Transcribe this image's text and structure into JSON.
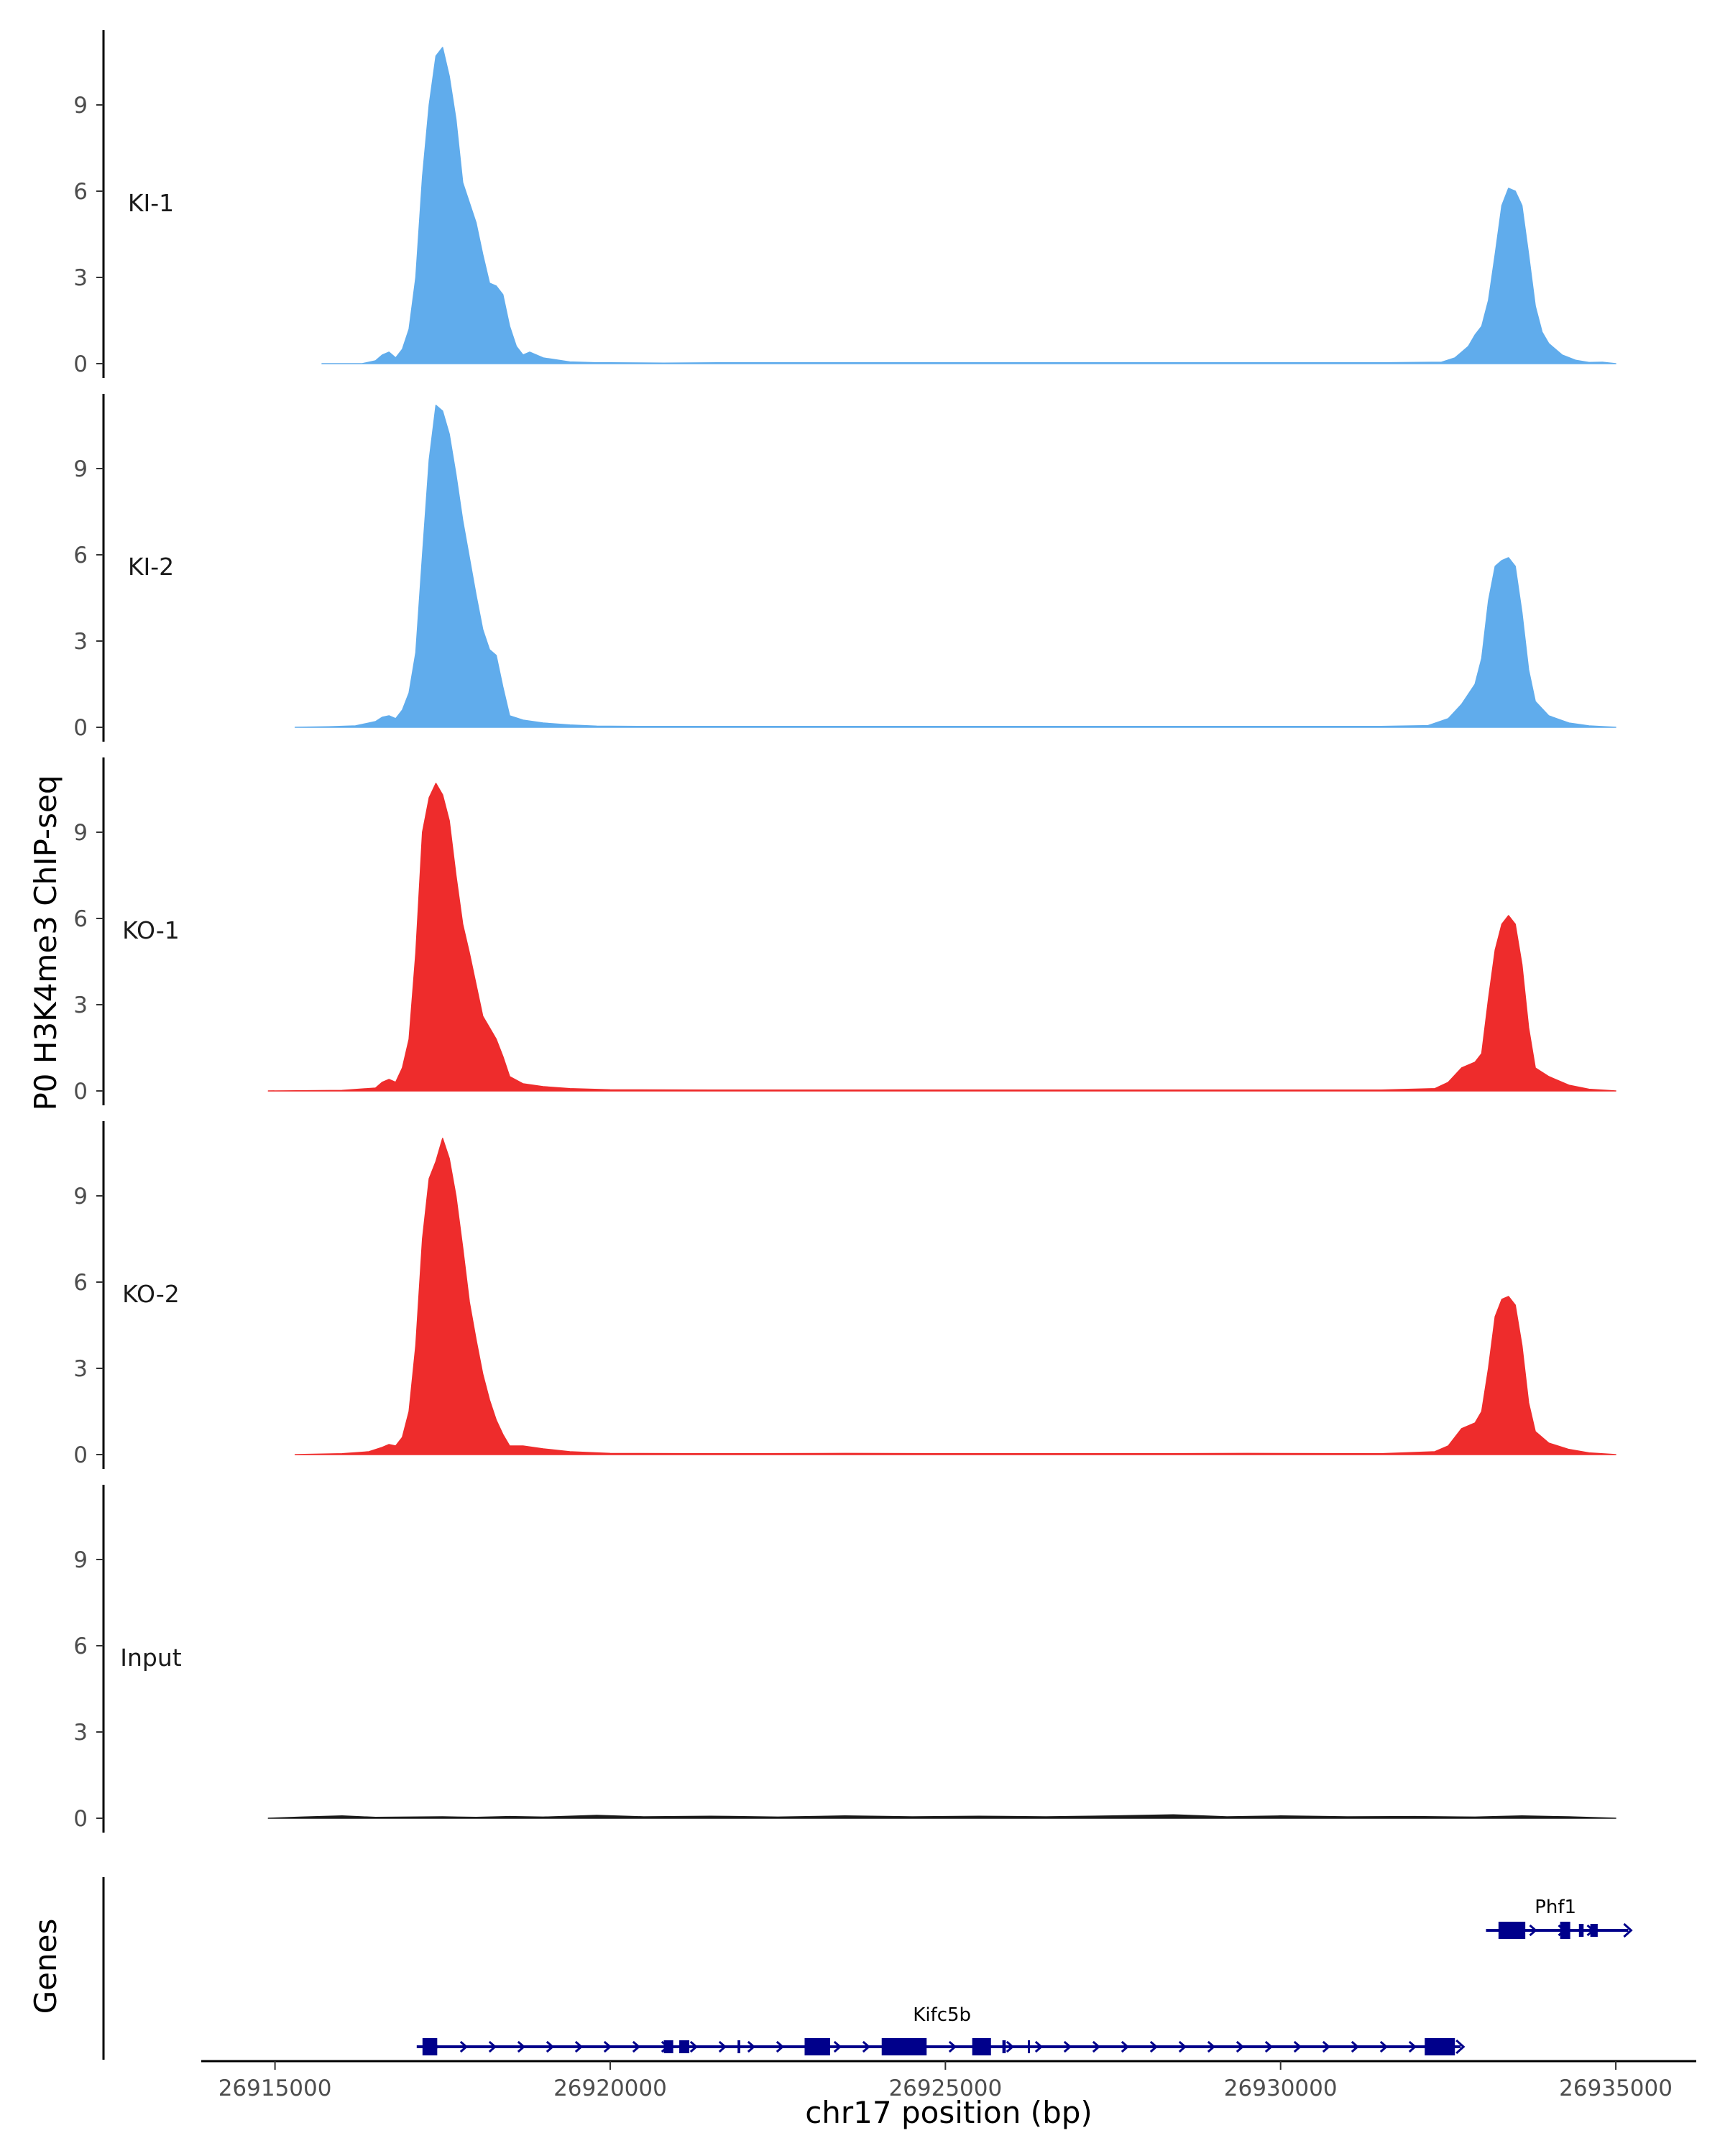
{
  "chart_data": {
    "type": "area",
    "title": "",
    "ylabel": "P0 H3K4me3 ChIP-seq",
    "xlabel": "chr17 position (bp)",
    "genes_label": "Genes",
    "ylim": [
      0,
      11.5
    ],
    "yticks": [
      0,
      3,
      6,
      9
    ],
    "xlim": [
      26913900,
      26936200
    ],
    "xticks": [
      26915000,
      26920000,
      26925000,
      26930000,
      26935000
    ],
    "xtick_labels": [
      "26915000",
      "26920000",
      "26925000",
      "26930000",
      "26935000"
    ],
    "data_range": [
      26914800,
      26935000
    ],
    "colors": {
      "KI": "#60acec",
      "KO": "#ee2c2c",
      "Input": "#1a1a1a",
      "gene": "#00008b"
    },
    "tracks": [
      {
        "name": "KI-1",
        "color": "#60acec",
        "points": [
          [
            26915700,
            0
          ],
          [
            26916300,
            0
          ],
          [
            26916500,
            0.1
          ],
          [
            26916600,
            0.3
          ],
          [
            26916700,
            0.4
          ],
          [
            26916800,
            0.2
          ],
          [
            26916900,
            0.5
          ],
          [
            26917000,
            1.2
          ],
          [
            26917100,
            3.0
          ],
          [
            26917200,
            6.5
          ],
          [
            26917300,
            9.0
          ],
          [
            26917400,
            10.7
          ],
          [
            26917500,
            11.0
          ],
          [
            26917600,
            10.0
          ],
          [
            26917700,
            8.5
          ],
          [
            26917800,
            6.3
          ],
          [
            26917900,
            5.6
          ],
          [
            26918000,
            4.9
          ],
          [
            26918100,
            3.8
          ],
          [
            26918200,
            2.8
          ],
          [
            26918300,
            2.7
          ],
          [
            26918400,
            2.4
          ],
          [
            26918500,
            1.3
          ],
          [
            26918600,
            0.6
          ],
          [
            26918700,
            0.3
          ],
          [
            26918800,
            0.4
          ],
          [
            26919000,
            0.2
          ],
          [
            26919400,
            0.06
          ],
          [
            26919800,
            0.03
          ],
          [
            26920000,
            0.03
          ],
          [
            26920800,
            0.02
          ],
          [
            26921600,
            0.03
          ],
          [
            26922600,
            0.03
          ],
          [
            26924500,
            0.03
          ],
          [
            26926500,
            0.03
          ],
          [
            26928000,
            0.03
          ],
          [
            26930000,
            0.03
          ],
          [
            26931500,
            0.03
          ],
          [
            26932400,
            0.05
          ],
          [
            26932600,
            0.2
          ],
          [
            26932800,
            0.6
          ],
          [
            26932900,
            1.0
          ],
          [
            26933000,
            1.3
          ],
          [
            26933100,
            2.2
          ],
          [
            26933200,
            3.8
          ],
          [
            26933300,
            5.5
          ],
          [
            26933400,
            6.1
          ],
          [
            26933500,
            6.0
          ],
          [
            26933600,
            5.5
          ],
          [
            26933700,
            3.8
          ],
          [
            26933800,
            2.0
          ],
          [
            26933900,
            1.1
          ],
          [
            26934000,
            0.7
          ],
          [
            26934200,
            0.3
          ],
          [
            26934400,
            0.12
          ],
          [
            26934600,
            0.04
          ],
          [
            26934800,
            0.05
          ],
          [
            26935000,
            0
          ]
        ]
      },
      {
        "name": "KI-2",
        "color": "#60acec",
        "points": [
          [
            26915300,
            0
          ],
          [
            26915800,
            0.02
          ],
          [
            26916200,
            0.05
          ],
          [
            26916500,
            0.2
          ],
          [
            26916600,
            0.35
          ],
          [
            26916700,
            0.4
          ],
          [
            26916800,
            0.3
          ],
          [
            26916900,
            0.6
          ],
          [
            26917000,
            1.2
          ],
          [
            26917100,
            2.6
          ],
          [
            26917200,
            6.0
          ],
          [
            26917300,
            9.3
          ],
          [
            26917400,
            11.2
          ],
          [
            26917500,
            11.0
          ],
          [
            26917600,
            10.2
          ],
          [
            26917700,
            8.8
          ],
          [
            26917800,
            7.2
          ],
          [
            26917900,
            5.9
          ],
          [
            26918000,
            4.6
          ],
          [
            26918100,
            3.4
          ],
          [
            26918200,
            2.7
          ],
          [
            26918300,
            2.5
          ],
          [
            26918400,
            1.4
          ],
          [
            26918500,
            0.4
          ],
          [
            26918700,
            0.25
          ],
          [
            26919000,
            0.15
          ],
          [
            26919400,
            0.08
          ],
          [
            26919800,
            0.04
          ],
          [
            26920400,
            0.03
          ],
          [
            26921500,
            0.03
          ],
          [
            26923000,
            0.03
          ],
          [
            26925000,
            0.03
          ],
          [
            26927000,
            0.03
          ],
          [
            26929500,
            0.03
          ],
          [
            26931500,
            0.03
          ],
          [
            26932200,
            0.06
          ],
          [
            26932500,
            0.3
          ],
          [
            26932700,
            0.8
          ],
          [
            26932900,
            1.5
          ],
          [
            26933000,
            2.4
          ],
          [
            26933100,
            4.4
          ],
          [
            26933200,
            5.6
          ],
          [
            26933300,
            5.8
          ],
          [
            26933400,
            5.9
          ],
          [
            26933500,
            5.6
          ],
          [
            26933600,
            4.0
          ],
          [
            26933700,
            2.0
          ],
          [
            26933800,
            0.9
          ],
          [
            26934000,
            0.4
          ],
          [
            26934300,
            0.15
          ],
          [
            26934600,
            0.05
          ],
          [
            26935000,
            0
          ]
        ]
      },
      {
        "name": "KO-1",
        "color": "#ee2c2c",
        "points": [
          [
            26914900,
            0
          ],
          [
            26916000,
            0.02
          ],
          [
            26916500,
            0.1
          ],
          [
            26916600,
            0.3
          ],
          [
            26916700,
            0.4
          ],
          [
            26916800,
            0.3
          ],
          [
            26916900,
            0.8
          ],
          [
            26917000,
            1.8
          ],
          [
            26917100,
            4.8
          ],
          [
            26917200,
            9.0
          ],
          [
            26917300,
            10.2
          ],
          [
            26917400,
            10.7
          ],
          [
            26917500,
            10.3
          ],
          [
            26917600,
            9.4
          ],
          [
            26917700,
            7.5
          ],
          [
            26917800,
            5.8
          ],
          [
            26917900,
            4.8
          ],
          [
            26918000,
            3.7
          ],
          [
            26918100,
            2.6
          ],
          [
            26918200,
            2.2
          ],
          [
            26918300,
            1.8
          ],
          [
            26918400,
            1.2
          ],
          [
            26918500,
            0.5
          ],
          [
            26918700,
            0.25
          ],
          [
            26919000,
            0.15
          ],
          [
            26919400,
            0.08
          ],
          [
            26920000,
            0.04
          ],
          [
            26921500,
            0.03
          ],
          [
            26923500,
            0.03
          ],
          [
            26925500,
            0.03
          ],
          [
            26927500,
            0.03
          ],
          [
            26929500,
            0.03
          ],
          [
            26931500,
            0.03
          ],
          [
            26932300,
            0.08
          ],
          [
            26932500,
            0.3
          ],
          [
            26932700,
            0.8
          ],
          [
            26932900,
            1.0
          ],
          [
            26933000,
            1.3
          ],
          [
            26933100,
            3.2
          ],
          [
            26933200,
            4.9
          ],
          [
            26933300,
            5.8
          ],
          [
            26933400,
            6.1
          ],
          [
            26933500,
            5.8
          ],
          [
            26933600,
            4.4
          ],
          [
            26933700,
            2.2
          ],
          [
            26933800,
            0.8
          ],
          [
            26934000,
            0.5
          ],
          [
            26934300,
            0.2
          ],
          [
            26934600,
            0.06
          ],
          [
            26935000,
            0
          ]
        ]
      },
      {
        "name": "KO-2",
        "color": "#ee2c2c",
        "points": [
          [
            26915300,
            0
          ],
          [
            26916000,
            0.03
          ],
          [
            26916400,
            0.1
          ],
          [
            26916600,
            0.25
          ],
          [
            26916700,
            0.35
          ],
          [
            26916800,
            0.3
          ],
          [
            26916900,
            0.6
          ],
          [
            26917000,
            1.5
          ],
          [
            26917100,
            3.8
          ],
          [
            26917200,
            7.5
          ],
          [
            26917300,
            9.6
          ],
          [
            26917400,
            10.2
          ],
          [
            26917500,
            11.0
          ],
          [
            26917600,
            10.3
          ],
          [
            26917700,
            9.0
          ],
          [
            26917800,
            7.2
          ],
          [
            26917900,
            5.3
          ],
          [
            26918000,
            4.0
          ],
          [
            26918100,
            2.8
          ],
          [
            26918200,
            1.9
          ],
          [
            26918300,
            1.2
          ],
          [
            26918400,
            0.7
          ],
          [
            26918500,
            0.3
          ],
          [
            26918700,
            0.3
          ],
          [
            26919000,
            0.2
          ],
          [
            26919400,
            0.1
          ],
          [
            26920000,
            0.04
          ],
          [
            26921500,
            0.03
          ],
          [
            26923500,
            0.04
          ],
          [
            26925500,
            0.03
          ],
          [
            26927500,
            0.03
          ],
          [
            26929500,
            0.04
          ],
          [
            26931500,
            0.03
          ],
          [
            26932300,
            0.1
          ],
          [
            26932500,
            0.3
          ],
          [
            26932700,
            0.9
          ],
          [
            26932900,
            1.1
          ],
          [
            26933000,
            1.5
          ],
          [
            26933100,
            3.0
          ],
          [
            26933200,
            4.8
          ],
          [
            26933300,
            5.4
          ],
          [
            26933400,
            5.5
          ],
          [
            26933500,
            5.2
          ],
          [
            26933600,
            3.8
          ],
          [
            26933700,
            1.8
          ],
          [
            26933800,
            0.8
          ],
          [
            26934000,
            0.4
          ],
          [
            26934300,
            0.18
          ],
          [
            26934600,
            0.06
          ],
          [
            26935000,
            0
          ]
        ]
      },
      {
        "name": "Input",
        "color": "#1a1a1a",
        "points": [
          [
            26914900,
            0
          ],
          [
            26915400,
            0.04
          ],
          [
            26916000,
            0.08
          ],
          [
            26916500,
            0.03
          ],
          [
            26917500,
            0.05
          ],
          [
            26918000,
            0.03
          ],
          [
            26918500,
            0.06
          ],
          [
            26919000,
            0.04
          ],
          [
            26919800,
            0.1
          ],
          [
            26920500,
            0.05
          ],
          [
            26921500,
            0.07
          ],
          [
            26922500,
            0.04
          ],
          [
            26923500,
            0.08
          ],
          [
            26924500,
            0.05
          ],
          [
            26925500,
            0.07
          ],
          [
            26926500,
            0.05
          ],
          [
            26927500,
            0.08
          ],
          [
            26928400,
            0.12
          ],
          [
            26929200,
            0.05
          ],
          [
            26930000,
            0.08
          ],
          [
            26931000,
            0.05
          ],
          [
            26932000,
            0.06
          ],
          [
            26932900,
            0.04
          ],
          [
            26933600,
            0.08
          ],
          [
            26934300,
            0.05
          ],
          [
            26935000,
            0
          ]
        ]
      }
    ],
    "genes": [
      {
        "name": "Kifc5b",
        "start": 26917200,
        "end": 26932600,
        "strand": "+",
        "label_x": 26924950,
        "exons": [
          [
            26917200,
            26917420,
            "big"
          ],
          [
            26920800,
            26920940,
            "small"
          ],
          [
            26921030,
            26921180,
            "small"
          ],
          [
            26921900,
            26921940,
            "small"
          ],
          [
            26922900,
            26923280,
            "big"
          ],
          [
            26924050,
            26924720,
            "big"
          ],
          [
            26925400,
            26925680,
            "big"
          ],
          [
            26925850,
            26925900,
            "small"
          ],
          [
            26926230,
            26926260,
            "small"
          ],
          [
            26932150,
            26932600,
            "big"
          ]
        ]
      },
      {
        "name": "Phf1",
        "start": 26933150,
        "end": 26935100,
        "strand": "+",
        "label_x": 26934100,
        "exons": [
          [
            26933250,
            26933650,
            "big"
          ],
          [
            26934170,
            26934320,
            "big"
          ],
          [
            26934450,
            26934520,
            "small"
          ],
          [
            26934620,
            26934730,
            "small"
          ]
        ]
      }
    ]
  }
}
